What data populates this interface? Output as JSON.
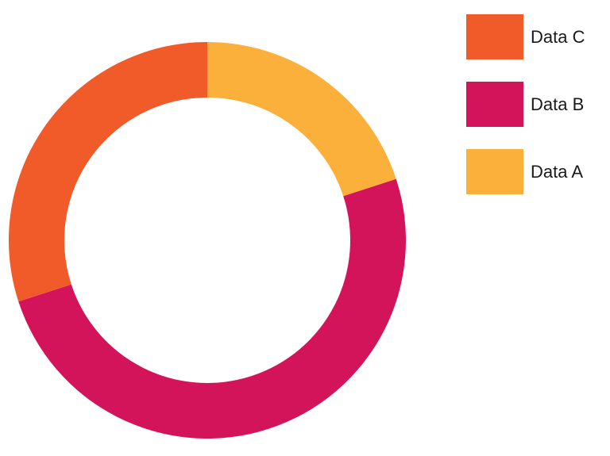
{
  "chart_data": {
    "type": "pie",
    "variant": "donut",
    "title": "",
    "start": "top",
    "direction": "clockwise",
    "slices": [
      {
        "label": "Data A",
        "value": 20,
        "color": "#FBB03B"
      },
      {
        "label": "Data B",
        "value": 50,
        "color": "#D4145A"
      },
      {
        "label": "Data C",
        "value": 30,
        "color": "#F15A29"
      }
    ],
    "legend": {
      "placement": "top-right",
      "order": [
        "Data C",
        "Data B",
        "Data A"
      ]
    }
  }
}
